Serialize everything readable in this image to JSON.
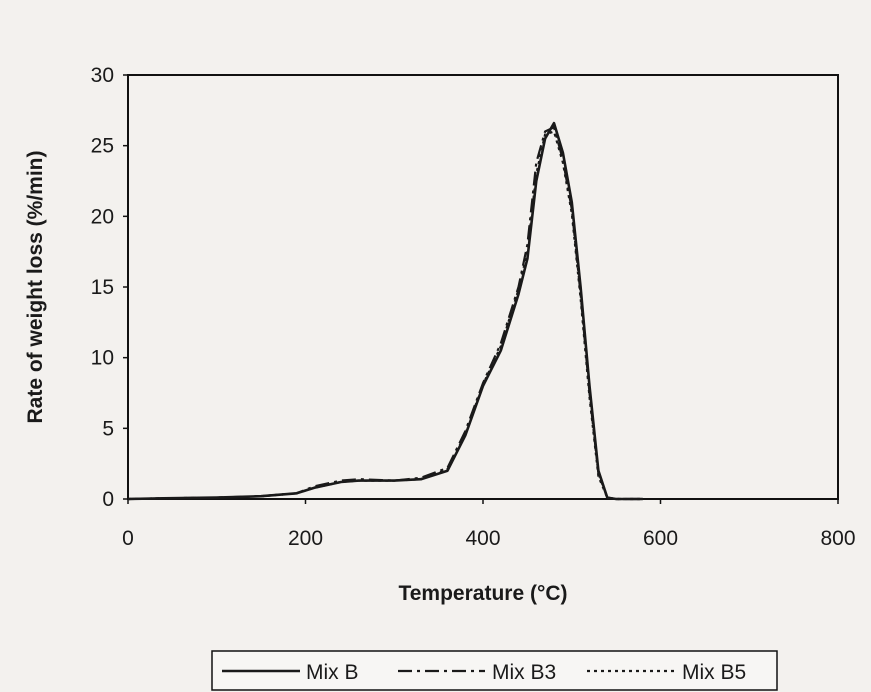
{
  "chart_data": {
    "type": "line",
    "title": "",
    "xlabel": "Temperature (°C)",
    "ylabel": "Rate of weight loss (%/min)",
    "xlim": [
      0,
      800
    ],
    "ylim": [
      0,
      30
    ],
    "x_ticks": [
      "0",
      "200",
      "400",
      "600",
      "800"
    ],
    "y_ticks": [
      "0",
      "5",
      "10",
      "15",
      "20",
      "25",
      "30"
    ],
    "grid": false,
    "legend_position": "bottom",
    "series": [
      {
        "name": "Mix B",
        "line_style": "solid",
        "color": "#1a1a1a",
        "x": [
          0,
          40,
          100,
          150,
          190,
          210,
          240,
          260,
          300,
          330,
          360,
          380,
          400,
          420,
          440,
          450,
          460,
          470,
          480,
          490,
          500,
          510,
          520,
          530,
          540,
          550,
          560,
          580
        ],
        "y": [
          0,
          0.05,
          0.1,
          0.2,
          0.4,
          0.8,
          1.2,
          1.3,
          1.3,
          1.4,
          2.0,
          4.5,
          8.0,
          10.5,
          14.5,
          17.0,
          22.5,
          25.5,
          26.6,
          24.5,
          21.0,
          15.0,
          8.0,
          2.0,
          0.1,
          0,
          0,
          0
        ]
      },
      {
        "name": "Mix B3",
        "line_style": "dash-dot",
        "color": "#1a1a1a",
        "x": [
          0,
          40,
          100,
          150,
          190,
          210,
          240,
          260,
          300,
          330,
          360,
          380,
          400,
          420,
          440,
          450,
          460,
          470,
          480,
          490,
          500,
          510,
          520,
          530,
          540,
          550,
          560,
          580
        ],
        "y": [
          0,
          0.05,
          0.1,
          0.2,
          0.4,
          0.9,
          1.3,
          1.4,
          1.3,
          1.5,
          2.2,
          4.8,
          8.2,
          11.0,
          15.0,
          18.0,
          23.8,
          26.0,
          26.3,
          24.0,
          20.5,
          14.5,
          7.5,
          1.8,
          0.1,
          0,
          0,
          0
        ]
      },
      {
        "name": "Mix B5",
        "line_style": "dotted",
        "color": "#1a1a1a",
        "x": [
          0,
          40,
          100,
          150,
          190,
          210,
          240,
          260,
          300,
          330,
          360,
          380,
          400,
          420,
          440,
          450,
          460,
          470,
          480,
          490,
          500,
          510,
          520,
          530,
          540,
          550,
          560,
          580
        ],
        "y": [
          0,
          0.05,
          0.1,
          0.2,
          0.4,
          0.8,
          1.2,
          1.3,
          1.3,
          1.4,
          2.1,
          4.6,
          8.1,
          10.8,
          14.8,
          17.5,
          23.0,
          25.8,
          26.0,
          23.8,
          20.2,
          14.2,
          7.2,
          1.6,
          0.1,
          0,
          0,
          0
        ]
      }
    ]
  }
}
